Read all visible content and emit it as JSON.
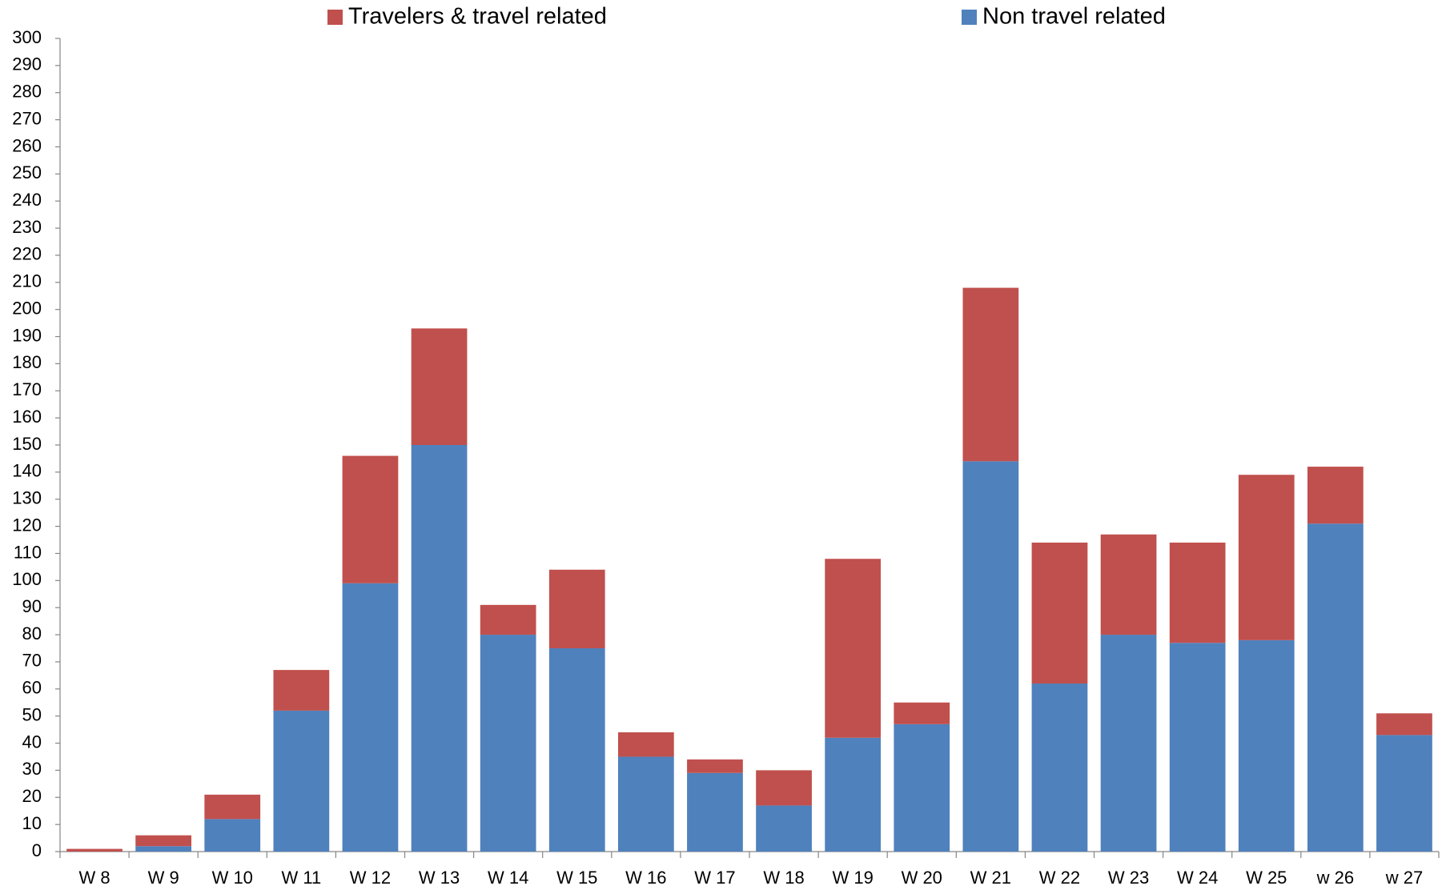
{
  "chart_data": {
    "type": "stacked-bar",
    "categories": [
      "W 8",
      "W 9",
      "W 10",
      "W 11",
      "W 12",
      "W 13",
      "W 14",
      "W 15",
      "W 16",
      "W 17",
      "W 18",
      "W 19",
      "W 20",
      "W 21",
      "W 22",
      "W 23",
      "W 24",
      "W 25",
      "w 26",
      "w 27"
    ],
    "series": [
      {
        "name": "Non travel related",
        "color": "#4f81bd",
        "values": [
          0,
          2,
          12,
          52,
          99,
          150,
          80,
          75,
          35,
          29,
          17,
          42,
          47,
          144,
          62,
          80,
          77,
          78,
          121,
          43
        ]
      },
      {
        "name": "Travelers & travel related",
        "color": "#c0504d",
        "values": [
          1,
          4,
          9,
          15,
          47,
          43,
          11,
          29,
          9,
          5,
          13,
          66,
          8,
          64,
          52,
          37,
          37,
          61,
          21,
          8
        ]
      }
    ],
    "ylim": [
      0,
      300
    ],
    "yticks": [
      0,
      10,
      20,
      30,
      40,
      50,
      60,
      70,
      80,
      90,
      100,
      110,
      120,
      130,
      140,
      150,
      160,
      170,
      180,
      190,
      200,
      210,
      220,
      230,
      240,
      250,
      260,
      270,
      280,
      290,
      300
    ],
    "grid": false
  }
}
